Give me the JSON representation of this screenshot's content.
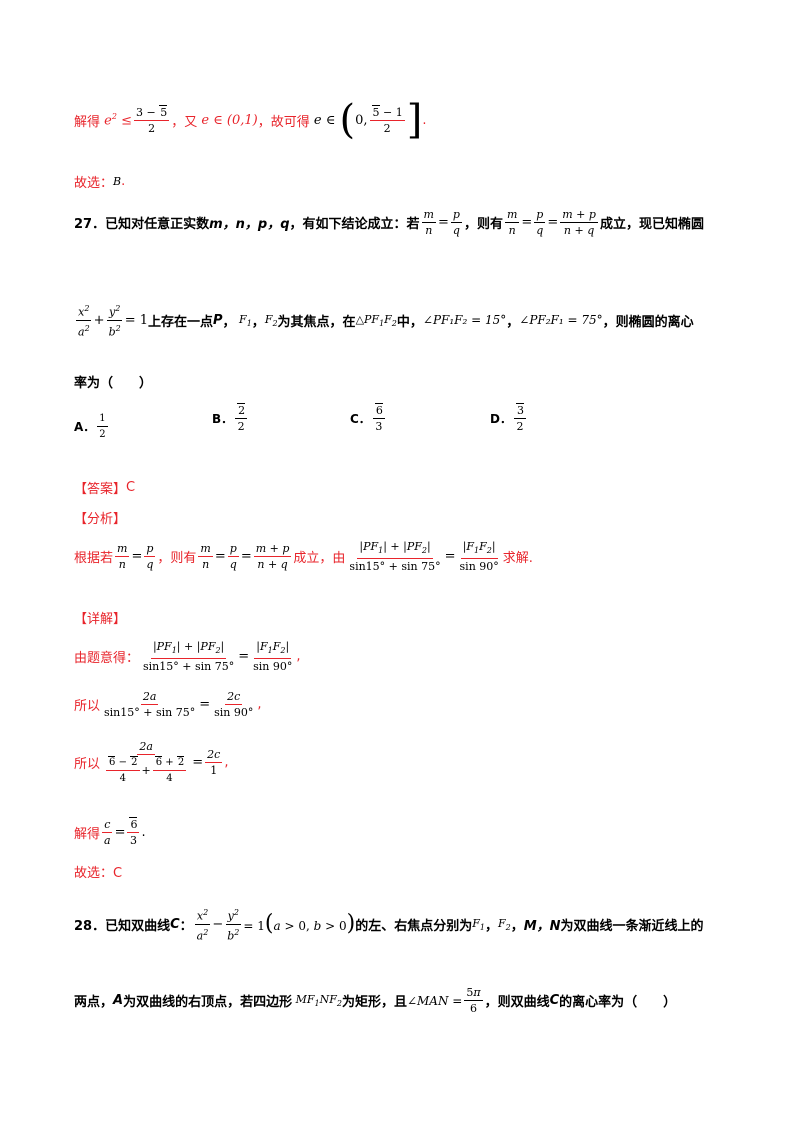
{
  "solve_prev": {
    "t1": "解得",
    "t2": "，又",
    "t3": "，故可得",
    "t4": "."
  },
  "prev_choice": {
    "label": "故选：",
    "value": "B",
    "dot": "."
  },
  "q27": {
    "number": "27．",
    "stem1": "已知对任意正实数",
    "vars": "m，n，p，q",
    "stem2": "，有如下结论成立：若",
    "stem3": "，则有",
    "stem4": "成立，现已知椭圆",
    "stem5": "上存在一点",
    "P": "P",
    "stem6": "，",
    "stem7": "为其焦点，在",
    "stem8": "中，",
    "angle1": "∠PF₁F₂ = 15°",
    "angle2": "∠PF₂F₁ = 75°",
    "stem9": "，则椭圆的离心",
    "stem10": "率为（　　）",
    "options": [
      {
        "label": "A．",
        "value": "1/2"
      },
      {
        "label": "B．",
        "value": "√2/2"
      },
      {
        "label": "C．",
        "value": "√6/3"
      },
      {
        "label": "D．",
        "value": "√3/2"
      }
    ],
    "answer_tag": "【答案】",
    "answer": "C",
    "analysis_tag": "【分析】",
    "analysis1": "根据若",
    "analysis2": "，则有",
    "analysis3": "成立，由",
    "analysis4": "求解.",
    "detail_tag": "【详解】",
    "d1": "由题意得：",
    "d2": "所以",
    "d3": "所以",
    "d4": "解得",
    "d5": "故选：C"
  },
  "q28": {
    "number": "28．",
    "stem1": "已知双曲线",
    "C": "C",
    "stem2": "：",
    "stem3": "的左、右焦点分别为",
    "stem4": "，",
    "stem5": "，",
    "MN": "M，N",
    "stem6": "为双曲线一条渐近线上的",
    "stem7": "两点，",
    "A": "A",
    "stem8": "为双曲线的右顶点，若四边形",
    "stem9": "为矩形，且",
    "stem10": "，则双曲线",
    "stem11": "的离心率为（　　）"
  },
  "colors": {
    "red": "#e8242b",
    "black": "#000000"
  }
}
